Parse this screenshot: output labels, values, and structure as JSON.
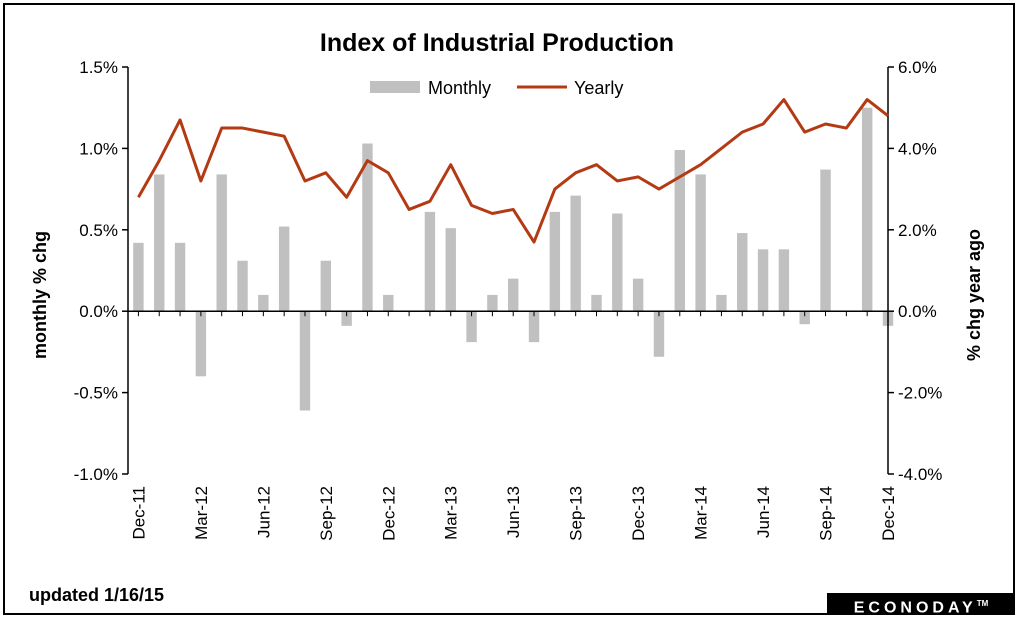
{
  "chart_data": {
    "type": "bar+line",
    "title": "Index of Industrial Production",
    "ylabel_left": "monthly % chg",
    "ylabel_right": "% chg year ago",
    "ylim_left": [
      -1.0,
      1.5
    ],
    "ylim_right": [
      -4.0,
      6.0
    ],
    "yticks_left": [
      "1.5%",
      "1.0%",
      "0.5%",
      "0.0%",
      "-0.5%",
      "-1.0%"
    ],
    "yticks_right": [
      "6.0%",
      "4.0%",
      "2.0%",
      "0.0%",
      "-2.0%",
      "-4.0%"
    ],
    "x_tick_labels": [
      "Dec-11",
      "Mar-12",
      "Jun-12",
      "Sep-12",
      "Dec-12",
      "Mar-13",
      "Jun-13",
      "Sep-13",
      "Dec-13",
      "Mar-14",
      "Jun-14",
      "Sep-14",
      "Dec-14"
    ],
    "x": [
      "Dec-11",
      "Jan-12",
      "Feb-12",
      "Mar-12",
      "Apr-12",
      "May-12",
      "Jun-12",
      "Jul-12",
      "Aug-12",
      "Sep-12",
      "Oct-12",
      "Nov-12",
      "Dec-12",
      "Jan-13",
      "Feb-13",
      "Mar-13",
      "Apr-13",
      "May-13",
      "Jun-13",
      "Jul-13",
      "Aug-13",
      "Sep-13",
      "Oct-13",
      "Nov-13",
      "Dec-13",
      "Jan-14",
      "Feb-14",
      "Mar-14",
      "Apr-14",
      "May-14",
      "Jun-14",
      "Jul-14",
      "Aug-14",
      "Sep-14",
      "Oct-14",
      "Nov-14",
      "Dec-14"
    ],
    "series": [
      {
        "name": "Monthly",
        "type": "bar",
        "axis": "left",
        "color": "#c0c0c0",
        "values": [
          0.42,
          0.84,
          0.42,
          -0.4,
          0.84,
          0.31,
          0.1,
          0.52,
          -0.61,
          0.31,
          -0.09,
          1.03,
          0.1,
          null,
          0.61,
          0.51,
          -0.19,
          0.1,
          0.2,
          -0.19,
          0.61,
          0.71,
          0.1,
          0.6,
          0.2,
          -0.28,
          0.99,
          0.84,
          0.1,
          0.48,
          0.38,
          0.38,
          -0.08,
          0.87,
          null,
          1.25,
          -0.09
        ]
      },
      {
        "name": "Yearly",
        "type": "line",
        "axis": "right",
        "color": "#b33a13",
        "values": [
          2.8,
          3.7,
          4.7,
          3.2,
          4.5,
          4.5,
          4.4,
          4.3,
          3.2,
          3.4,
          2.8,
          3.7,
          3.4,
          2.5,
          2.7,
          3.6,
          2.6,
          2.4,
          2.5,
          1.7,
          3.0,
          3.4,
          3.6,
          3.2,
          3.3,
          3.0,
          3.3,
          3.6,
          4.0,
          4.4,
          4.6,
          5.2,
          4.4,
          4.6,
          4.5,
          5.2,
          4.8
        ]
      }
    ],
    "legend_position": "top-center",
    "grid": false
  },
  "footer": {
    "updated": "updated 1/16/15",
    "brand": "ECONODAY",
    "brand_mark": "TM"
  }
}
